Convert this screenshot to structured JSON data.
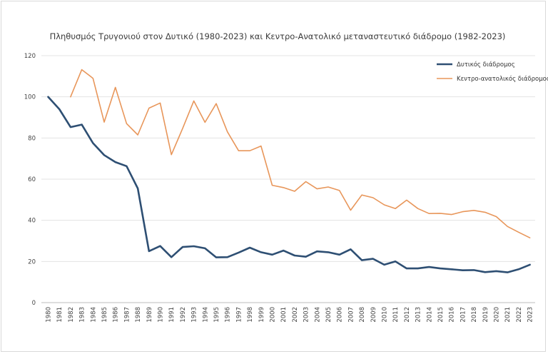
{
  "chart_data": {
    "type": "line",
    "title": "Πληθυσμός Τρυγονιού στον Δυτικό (1980-2023) και Κεντρο-Ανατολικό μεταναστευτικό διάδρομο (1982-2023)",
    "xlabel": "",
    "ylabel": "",
    "ylim": [
      0,
      120
    ],
    "yticks": [
      "0",
      "20",
      "40",
      "60",
      "80",
      "100",
      "120"
    ],
    "grid": true,
    "legend_position": "top-right",
    "x": [
      "1980",
      "1981",
      "1982",
      "1983",
      "1984",
      "1985",
      "1986",
      "1987",
      "1988",
      "1989",
      "1990",
      "1991",
      "1992",
      "1993",
      "1994",
      "1995",
      "1996",
      "1997",
      "1998",
      "1999",
      "2000",
      "2001",
      "2002",
      "2003",
      "2004",
      "2005",
      "2006",
      "2007",
      "2008",
      "2009",
      "2010",
      "2011",
      "2012",
      "2013",
      "2014",
      "2015",
      "2016",
      "2017",
      "2018",
      "2019",
      "2020",
      "2021",
      "2022",
      "2023"
    ],
    "series": [
      {
        "name": "Δυτικός διάδρομος",
        "color": "#2e4f73",
        "values": [
          100,
          94,
          85.3,
          86.5,
          77.5,
          71.7,
          68.3,
          66.3,
          55.5,
          25,
          27.5,
          22.1,
          27,
          27.4,
          26.4,
          22,
          22.1,
          24.3,
          26.7,
          24.5,
          23.3,
          25.3,
          22.9,
          22.3,
          24.9,
          24.5,
          23.3,
          25.9,
          20.6,
          21.3,
          18.4,
          20,
          16.6,
          16.6,
          17.3,
          16.6,
          16.2,
          15.7,
          15.8,
          14.8,
          15.3,
          14.7,
          16.2,
          18.4
        ]
      },
      {
        "name": "Κεντρο-ανατολικός διάδρομος",
        "color": "#e8965a",
        "values": [
          null,
          null,
          100,
          113.2,
          109,
          87.7,
          104.6,
          87,
          81.5,
          94.5,
          97,
          71.9,
          84.6,
          98,
          87.6,
          96.7,
          83,
          73.8,
          73.8,
          76.1,
          57,
          55.9,
          54.1,
          58.8,
          55.3,
          56.2,
          54.5,
          44.9,
          52.3,
          51,
          47.5,
          45.7,
          49.8,
          45.7,
          43.3,
          43.4,
          42.8,
          44.2,
          44.8,
          43.9,
          41.8,
          37,
          34.2,
          31.5
        ]
      }
    ]
  }
}
